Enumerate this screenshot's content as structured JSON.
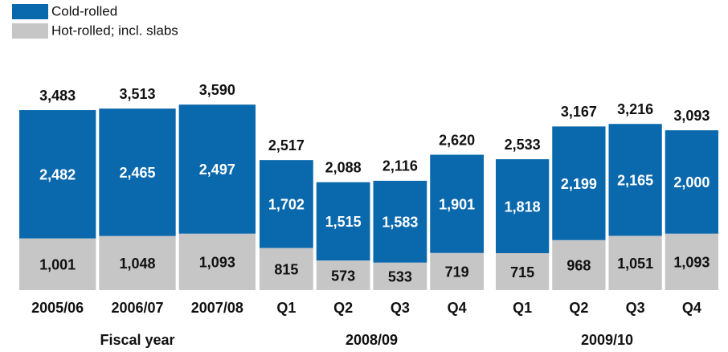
{
  "chart_data": {
    "type": "stacked-bar",
    "groups": [
      {
        "name": "Fiscal year",
        "categories": [
          "2005/06",
          "2006/07",
          "2007/08"
        ]
      },
      {
        "name": "2008/09",
        "categories": [
          "Q1",
          "Q2",
          "Q3",
          "Q4"
        ]
      },
      {
        "name": "2009/10",
        "categories": [
          "Q1",
          "Q2",
          "Q3",
          "Q4"
        ]
      }
    ],
    "series": [
      {
        "name": "Hot-rolled; incl. slabs",
        "color": "#c6c6c6",
        "values": [
          1001,
          1048,
          1093,
          815,
          573,
          533,
          719,
          715,
          968,
          1051,
          1093
        ],
        "value_labels": [
          "1,001",
          "1,048",
          "1,093",
          "815",
          "573",
          "533",
          "719",
          "715",
          "968",
          "1,051",
          "1,093"
        ]
      },
      {
        "name": "Cold-rolled",
        "color": "#0a68ac",
        "values": [
          2482,
          2465,
          2497,
          1702,
          1515,
          1583,
          1901,
          1818,
          2199,
          2165,
          2000
        ],
        "value_labels": [
          "2,482",
          "2,465",
          "2,497",
          "1,702",
          "1,515",
          "1,583",
          "1,901",
          "1,818",
          "2,199",
          "2,165",
          "2,000"
        ]
      }
    ],
    "totals": [
      3483,
      3513,
      3590,
      2517,
      2088,
      2116,
      2620,
      2533,
      3167,
      3216,
      3093
    ],
    "total_labels": [
      "3,483",
      "3,513",
      "3,590",
      "2,517",
      "2,088",
      "2,116",
      "2,620",
      "2,533",
      "3,167",
      "3,216",
      "3,093"
    ]
  }
}
